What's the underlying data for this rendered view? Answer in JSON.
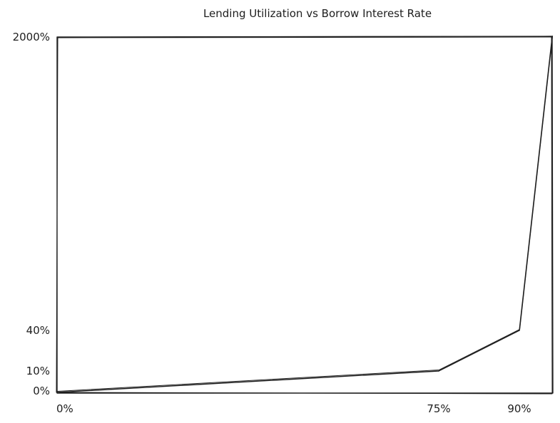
{
  "chart_data": {
    "type": "line",
    "title": "Lending Utilization vs Borrow Interest Rate",
    "xlabel": "",
    "ylabel": "",
    "x_ticks": [
      "0%",
      "75%",
      "90%"
    ],
    "y_ticks": [
      "0%",
      "10%",
      "40%",
      "2000%"
    ],
    "series": [
      {
        "x": [
          0,
          75,
          90,
          100
        ],
        "y": [
          0,
          10,
          40,
          2000
        ]
      }
    ],
    "grid": false,
    "legend": null,
    "style": "hand-drawn"
  }
}
